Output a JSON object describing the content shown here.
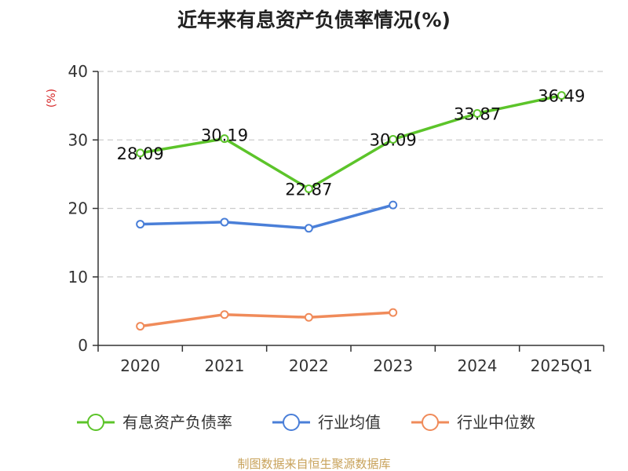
{
  "chart_data": {
    "type": "line",
    "title": "近年来有息资产负债率情况(%)",
    "ylabel": "(%)",
    "xlabel": "",
    "categories": [
      "2020",
      "2021",
      "2022",
      "2023",
      "2024",
      "2025Q1"
    ],
    "ylim": [
      0,
      40
    ],
    "yticks": [
      0,
      10,
      20,
      30,
      40
    ],
    "grid": true,
    "legend_position": "bottom",
    "series": [
      {
        "name": "有息资产负债率",
        "color": "#5cc42a",
        "values": [
          28.09,
          30.19,
          22.87,
          30.09,
          33.87,
          36.49
        ],
        "show_labels": true
      },
      {
        "name": "行业均值",
        "color": "#4a7fd8",
        "values": [
          17.7,
          18.0,
          17.1,
          20.5,
          null,
          null
        ],
        "show_labels": false
      },
      {
        "name": "行业中位数",
        "color": "#f08b5a",
        "values": [
          2.8,
          4.5,
          4.1,
          4.8,
          null,
          null
        ],
        "show_labels": false
      }
    ]
  },
  "source": "制图数据来自恒生聚源数据库",
  "colors": {
    "axis": "#333333",
    "grid": "#cccccc",
    "unit": "#d62728",
    "source": "#c8a25a"
  }
}
